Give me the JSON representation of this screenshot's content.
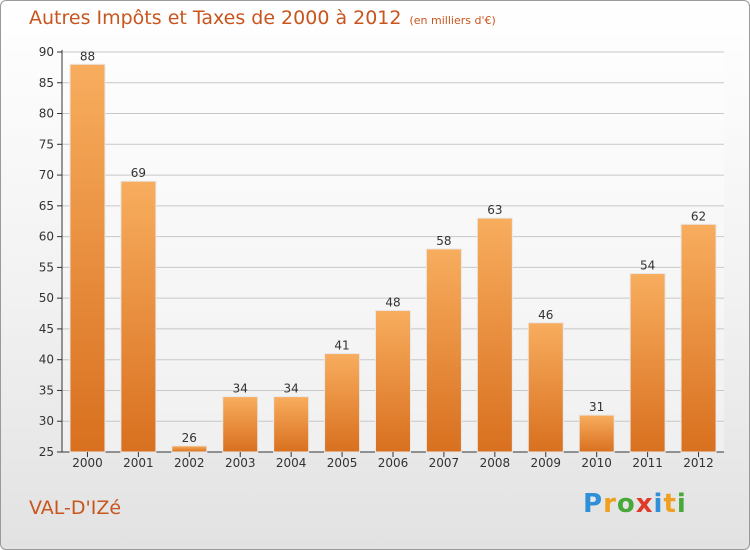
{
  "chart_data": {
    "type": "bar",
    "title": "Autres Impôts et Taxes de 2000 à 2012",
    "subtitle": "(en milliers d'€)",
    "categories": [
      "2000",
      "2001",
      "2002",
      "2003",
      "2004",
      "2005",
      "2006",
      "2007",
      "2008",
      "2009",
      "2010",
      "2011",
      "2012"
    ],
    "values": [
      88,
      69,
      26,
      34,
      34,
      41,
      48,
      58,
      63,
      46,
      31,
      54,
      62
    ],
    "ylim": [
      25,
      90
    ],
    "yticks": [
      25,
      30,
      35,
      40,
      45,
      50,
      55,
      60,
      65,
      70,
      75,
      80,
      85,
      90
    ],
    "grid": true,
    "bar_color": "#f08c3a",
    "bar_color_light": "#f8ad5e",
    "bar_color_dark": "#d8701f"
  },
  "footer": {
    "city": "VAL-D'IZé"
  },
  "logo": {
    "letters": [
      "P",
      "r",
      "o",
      "x",
      "i",
      "t",
      "i"
    ],
    "colors": [
      "#2f8fd8",
      "#f0a020",
      "#48a838",
      "#e03a2a",
      "#2f8fd8",
      "#f0a020",
      "#48a838"
    ]
  },
  "colors": {
    "title": "#c8551e",
    "axis": "#333333",
    "grid": "#c8c8c8"
  }
}
